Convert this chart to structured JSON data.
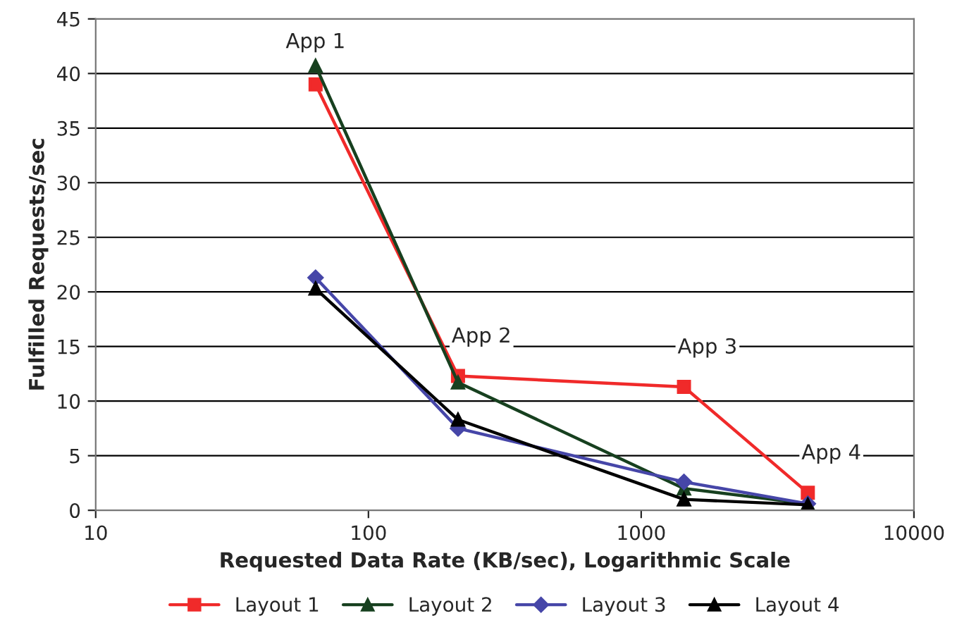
{
  "chart_data": {
    "type": "line",
    "xlabel": "Requested Data Rate (KB/sec), Logarithmic Scale",
    "ylabel": "Fulfilled Requests/sec",
    "x": [
      64,
      213,
      1435,
      4083
    ],
    "series": [
      {
        "name": "Layout 1",
        "color": "#f02a2a",
        "marker": "square",
        "values": [
          39,
          12.3,
          11.3,
          1.6
        ]
      },
      {
        "name": "Layout 2",
        "color": "#17401f",
        "marker": "triangle",
        "values": [
          40.7,
          11.7,
          2.0,
          0.6
        ]
      },
      {
        "name": "Layout 3",
        "color": "#4646a8",
        "marker": "diamond",
        "values": [
          21.3,
          7.5,
          2.6,
          0.6
        ]
      },
      {
        "name": "Layout 4",
        "color": "#000000",
        "marker": "triangle",
        "values": [
          20.3,
          8.3,
          1.0,
          0.5
        ]
      }
    ],
    "log": "x",
    "xlim": [
      10,
      10000
    ],
    "xticks": [
      10,
      100,
      1000,
      10000
    ],
    "ylim": [
      0,
      45
    ],
    "yticks": [
      0,
      5,
      10,
      15,
      20,
      25,
      30,
      35,
      40,
      45
    ],
    "grid": "y",
    "legend": "bottom",
    "line_style": "solid",
    "annotations": [
      "App 1",
      "App 2",
      "App 3",
      "App 4"
    ]
  }
}
